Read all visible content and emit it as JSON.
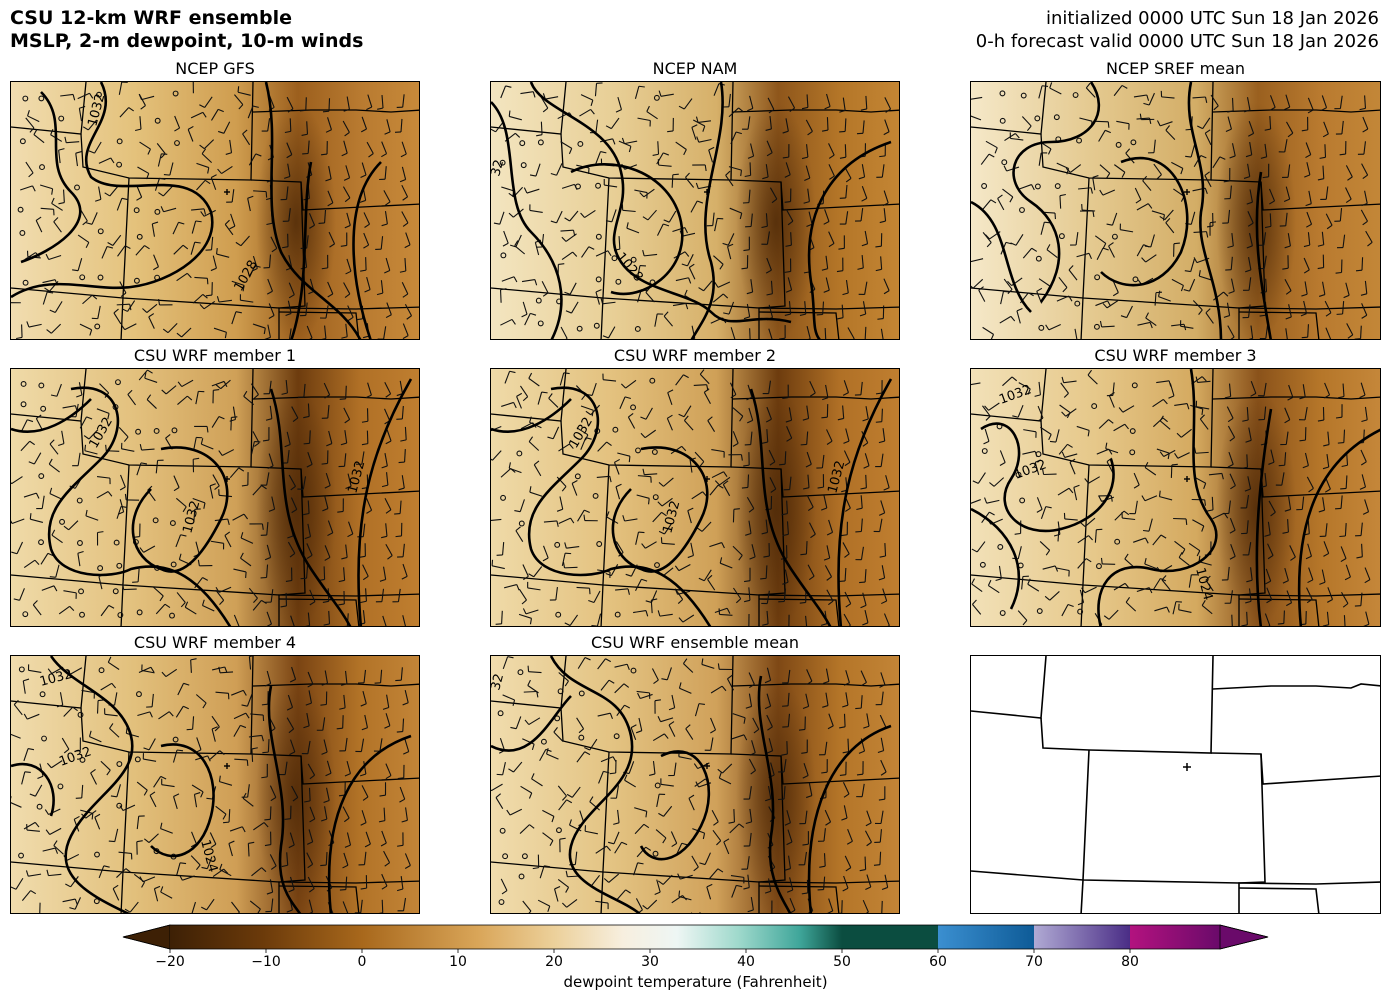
{
  "header": {
    "title_line1": "CSU 12-km WRF ensemble",
    "title_line2": "MSLP, 2-m dewpoint, 10-m winds",
    "init_line": "initialized 0000 UTC Sun 18 Jan 2026",
    "valid_line": "0-h forecast valid 0000 UTC Sun 18 Jan 2026"
  },
  "panels": [
    {
      "title": "NCEP GFS",
      "contour_labels": [
        "1032",
        "1028"
      ]
    },
    {
      "title": "NCEP NAM",
      "contour_labels": [
        "32",
        "1028"
      ]
    },
    {
      "title": "NCEP SREF mean",
      "contour_labels": []
    },
    {
      "title": "CSU WRF member 1",
      "contour_labels": [
        "1032",
        "1032",
        "1032"
      ]
    },
    {
      "title": "CSU WRF member 2",
      "contour_labels": [
        "1032",
        "1032",
        "1032"
      ]
    },
    {
      "title": "CSU WRF member 3",
      "contour_labels": [
        "1032",
        "1032",
        "1024"
      ]
    },
    {
      "title": "CSU WRF member 4",
      "contour_labels": [
        "1032",
        "1032",
        "1024"
      ]
    },
    {
      "title": "CSU WRF ensemble mean",
      "contour_labels": [
        "32",
        "102"
      ]
    }
  ],
  "colorbar": {
    "label": "dewpoint temperature (Fahrenheit)",
    "ticks": [
      "−20",
      "−10",
      "0",
      "10",
      "20",
      "30",
      "40",
      "50",
      "60",
      "70",
      "80"
    ],
    "tick_values": [
      -20,
      -10,
      0,
      10,
      20,
      30,
      40,
      50,
      60,
      70,
      80
    ],
    "range": [
      -25,
      90
    ]
  },
  "colors": {
    "dry_dark": "#3d2005",
    "brown": "#a8681c",
    "tan": "#e8c77f",
    "cream": "#f5ead0",
    "teal": "#3fa69a",
    "dark_teal": "#0b4d40",
    "blue": "#2176b8",
    "lavender": "#9b93c8",
    "magenta": "#a0107a",
    "purple": "#6a0a6a"
  }
}
